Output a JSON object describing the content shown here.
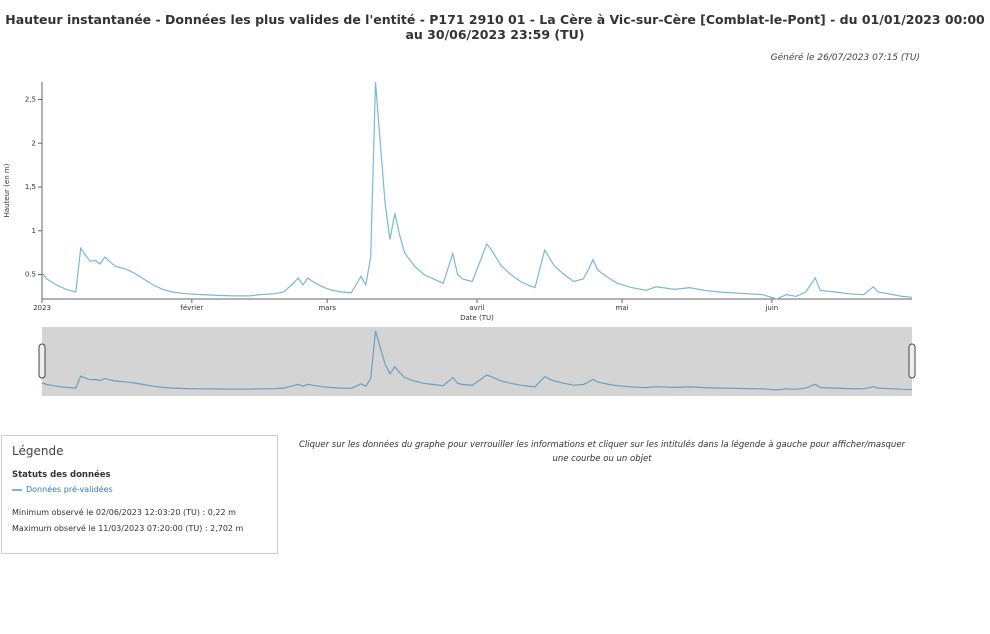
{
  "chart_data": {
    "type": "line",
    "title": "Hauteur instantanée - Données les plus valides de l'entité - P171 2910 01 - La Cère à Vic-sur-Cère [Comblat-le-Pont] - du 01/01/2023 00:00 au 30/06/2023 23:59 (TU)",
    "x_label": "Date (TU)",
    "y_label": "Hauteur (en m)",
    "x": [
      "2023-01-01",
      "2023-01-02",
      "2023-01-04",
      "2023-01-06",
      "2023-01-08",
      "2023-01-09",
      "2023-01-10",
      "2023-01-11",
      "2023-01-12",
      "2023-01-13",
      "2023-01-14",
      "2023-01-15",
      "2023-01-16",
      "2023-01-17",
      "2023-01-18",
      "2023-01-20",
      "2023-01-22",
      "2023-01-24",
      "2023-01-26",
      "2023-01-28",
      "2023-01-31",
      "2023-02-03",
      "2023-02-07",
      "2023-02-10",
      "2023-02-13",
      "2023-02-15",
      "2023-02-18",
      "2023-02-20",
      "2023-02-22",
      "2023-02-23",
      "2023-02-24",
      "2023-02-25",
      "2023-02-26",
      "2023-02-28",
      "2023-03-02",
      "2023-03-04",
      "2023-03-06",
      "2023-03-08",
      "2023-03-09",
      "2023-03-10",
      "2023-03-11",
      "2023-03-12",
      "2023-03-13",
      "2023-03-14",
      "2023-03-15",
      "2023-03-16",
      "2023-03-17",
      "2023-03-19",
      "2023-03-21",
      "2023-03-23",
      "2023-03-25",
      "2023-03-27",
      "2023-03-28",
      "2023-03-29",
      "2023-03-31",
      "2023-04-02",
      "2023-04-03",
      "2023-04-04",
      "2023-04-06",
      "2023-04-08",
      "2023-04-10",
      "2023-04-12",
      "2023-04-13",
      "2023-04-15",
      "2023-04-17",
      "2023-04-19",
      "2023-04-21",
      "2023-04-23",
      "2023-04-24",
      "2023-04-25",
      "2023-04-26",
      "2023-04-28",
      "2023-04-30",
      "2023-05-03",
      "2023-05-06",
      "2023-05-08",
      "2023-05-12",
      "2023-05-15",
      "2023-05-18",
      "2023-05-21",
      "2023-05-24",
      "2023-05-27",
      "2023-05-30",
      "2023-06-02",
      "2023-06-04",
      "2023-06-06",
      "2023-06-08",
      "2023-06-10",
      "2023-06-11",
      "2023-06-14",
      "2023-06-17",
      "2023-06-20",
      "2023-06-22",
      "2023-06-23",
      "2023-06-26",
      "2023-06-28",
      "2023-06-30"
    ],
    "series": [
      {
        "name": "Données pré-validées",
        "color": "#7ab8d6",
        "values": [
          0.52,
          0.45,
          0.38,
          0.33,
          0.3,
          0.8,
          0.72,
          0.65,
          0.66,
          0.62,
          0.7,
          0.65,
          0.6,
          0.58,
          0.57,
          0.52,
          0.45,
          0.38,
          0.33,
          0.3,
          0.28,
          0.27,
          0.26,
          0.255,
          0.255,
          0.27,
          0.28,
          0.3,
          0.4,
          0.46,
          0.38,
          0.46,
          0.42,
          0.36,
          0.32,
          0.3,
          0.29,
          0.48,
          0.38,
          0.7,
          2.7,
          2.0,
          1.3,
          0.9,
          1.2,
          0.95,
          0.75,
          0.6,
          0.5,
          0.45,
          0.4,
          0.74,
          0.5,
          0.45,
          0.42,
          0.7,
          0.85,
          0.78,
          0.6,
          0.5,
          0.42,
          0.37,
          0.35,
          0.78,
          0.6,
          0.5,
          0.42,
          0.45,
          0.55,
          0.67,
          0.55,
          0.47,
          0.4,
          0.35,
          0.32,
          0.36,
          0.33,
          0.35,
          0.32,
          0.3,
          0.29,
          0.28,
          0.27,
          0.22,
          0.27,
          0.25,
          0.3,
          0.46,
          0.32,
          0.3,
          0.28,
          0.27,
          0.36,
          0.3,
          0.27,
          0.25,
          0.24
        ]
      }
    ],
    "xlim": [
      "2023-01-01",
      "2023-06-30"
    ],
    "xticks": [
      {
        "value": "2023-01-01",
        "label": "2023"
      },
      {
        "value": "2023-02-01",
        "label": "février"
      },
      {
        "value": "2023-03-01",
        "label": "mars"
      },
      {
        "value": "2023-04-01",
        "label": "avril"
      },
      {
        "value": "2023-05-01",
        "label": "mai"
      },
      {
        "value": "2023-06-01",
        "label": "juin"
      }
    ],
    "ylim": [
      0.22,
      2.7
    ],
    "yticks": [
      0.5,
      1,
      {
        "value": 1.5,
        "label": "1,5"
      },
      2,
      {
        "value": 2.5,
        "label": "2,5"
      }
    ]
  },
  "generated": "Généré le 26/07/2023 07:15 (TU)",
  "legend": {
    "title": "Légende",
    "section": "Statuts des données",
    "min": "Minimum observé le 02/06/2023 12:03:20 (TU) : 0,22 m",
    "max": "Maximum observé le 11/03/2023 07:20:00 (TU) : 2,702 m"
  },
  "instructions": "Cliquer sur les données du graphe pour verrouiller les informations et cliquer sur les intitulés dans la légende à gauche pour afficher/masquer une courbe ou un objet"
}
